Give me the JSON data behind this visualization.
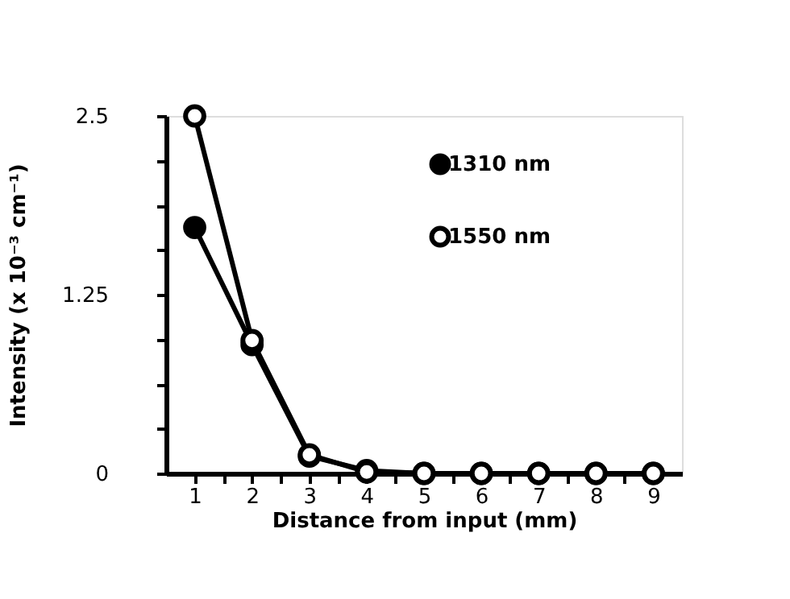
{
  "chart_data": {
    "type": "line",
    "xlabel": "Distance from input (mm)",
    "ylabel": "Intensity (x 10⁻³ cm⁻¹)",
    "x": [
      1,
      2,
      3,
      4,
      5,
      6,
      7,
      8,
      9
    ],
    "series": [
      {
        "name": "1310 nm",
        "color": "#000000",
        "values": [
          1.72,
          0.9,
          0.12,
          0.02,
          0,
          0,
          0,
          0,
          0
        ]
      },
      {
        "name": "1550 nm",
        "color": "#000000",
        "values": [
          2.5,
          0.93,
          0.13,
          0.01,
          0,
          0,
          0,
          0,
          0
        ]
      }
    ],
    "xlim": [
      0.5,
      9.5
    ],
    "xticks": [
      1,
      {
        "value": 1.5,
        "label": null
      },
      2,
      {
        "value": 2.5,
        "label": null
      },
      3,
      {
        "value": 3.5,
        "label": null
      },
      4,
      {
        "value": 4.5,
        "label": null
      },
      5,
      {
        "value": 5.5,
        "label": null
      },
      6,
      {
        "value": 6.5,
        "label": null
      },
      7,
      {
        "value": 7.5,
        "label": null
      },
      8,
      {
        "value": 8.5,
        "label": null
      },
      9
    ],
    "ylim": [
      0,
      2.5
    ],
    "yticks": [
      0,
      {
        "value": 0.3125,
        "label": null
      },
      {
        "value": 0.625,
        "label": null
      },
      {
        "value": 0.9375,
        "label": null
      },
      1.25,
      {
        "value": 1.5625,
        "label": null
      },
      {
        "value": 1.875,
        "label": null
      },
      {
        "value": 2.1875,
        "label": null
      },
      2.5
    ],
    "marker": "circle",
    "line_style": "solid",
    "grid": false,
    "legend": "top right"
  }
}
